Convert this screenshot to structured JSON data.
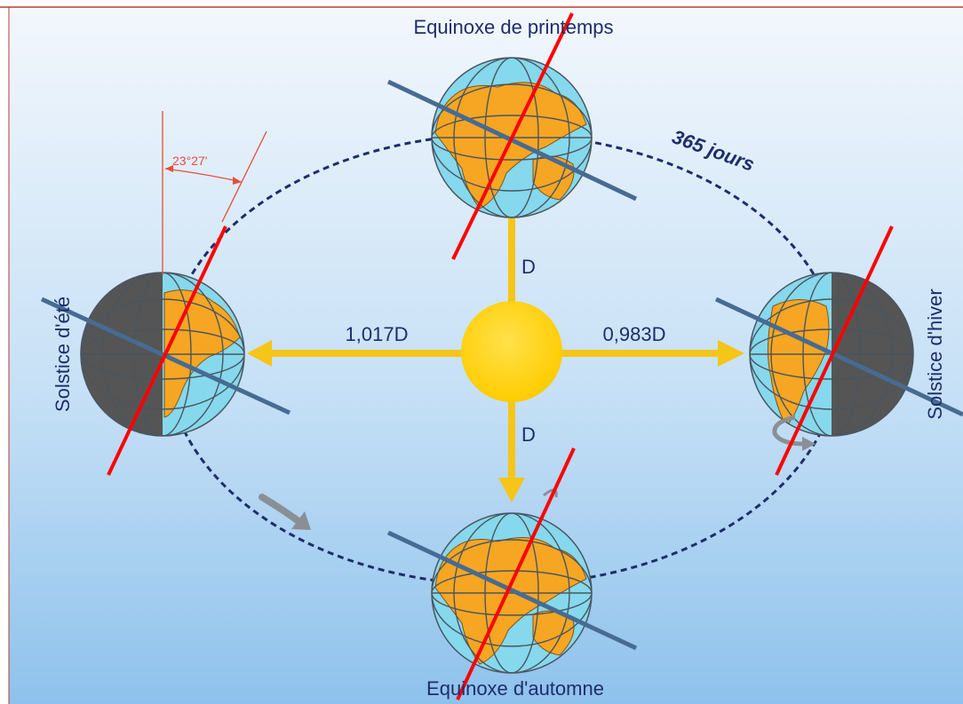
{
  "labels": {
    "spring_equinox": "Equinoxe de printemps",
    "autumn_equinox": "Equinoxe d'automne",
    "summer_solstice": "Solstice d'été",
    "winter_solstice": "Solstice d'hiver",
    "orbit_period": "365 jours",
    "axial_tilt": "23°27'",
    "distance_far": "1,017D",
    "distance_near": "0,983D",
    "distance_top": "D",
    "distance_bottom": "D"
  },
  "colors": {
    "frame_line": "#c0392b",
    "sky_top": "#eef5fb",
    "sky_bottom": "#8fc3ec",
    "sun": "#ffd200",
    "arrow": "#f5c518",
    "orbit": "#1e2d6b",
    "ocean": "#86d8ec",
    "land": "#f6a623",
    "night": "#555555",
    "grid": "#4a5560",
    "axis_red": "#ff0000",
    "terminator_blue": "#476b93",
    "text_dark_blue": "#1e2d6b",
    "tilt_red": "#e74c3c",
    "spin_arrow_gray": "#8a8f96"
  }
}
